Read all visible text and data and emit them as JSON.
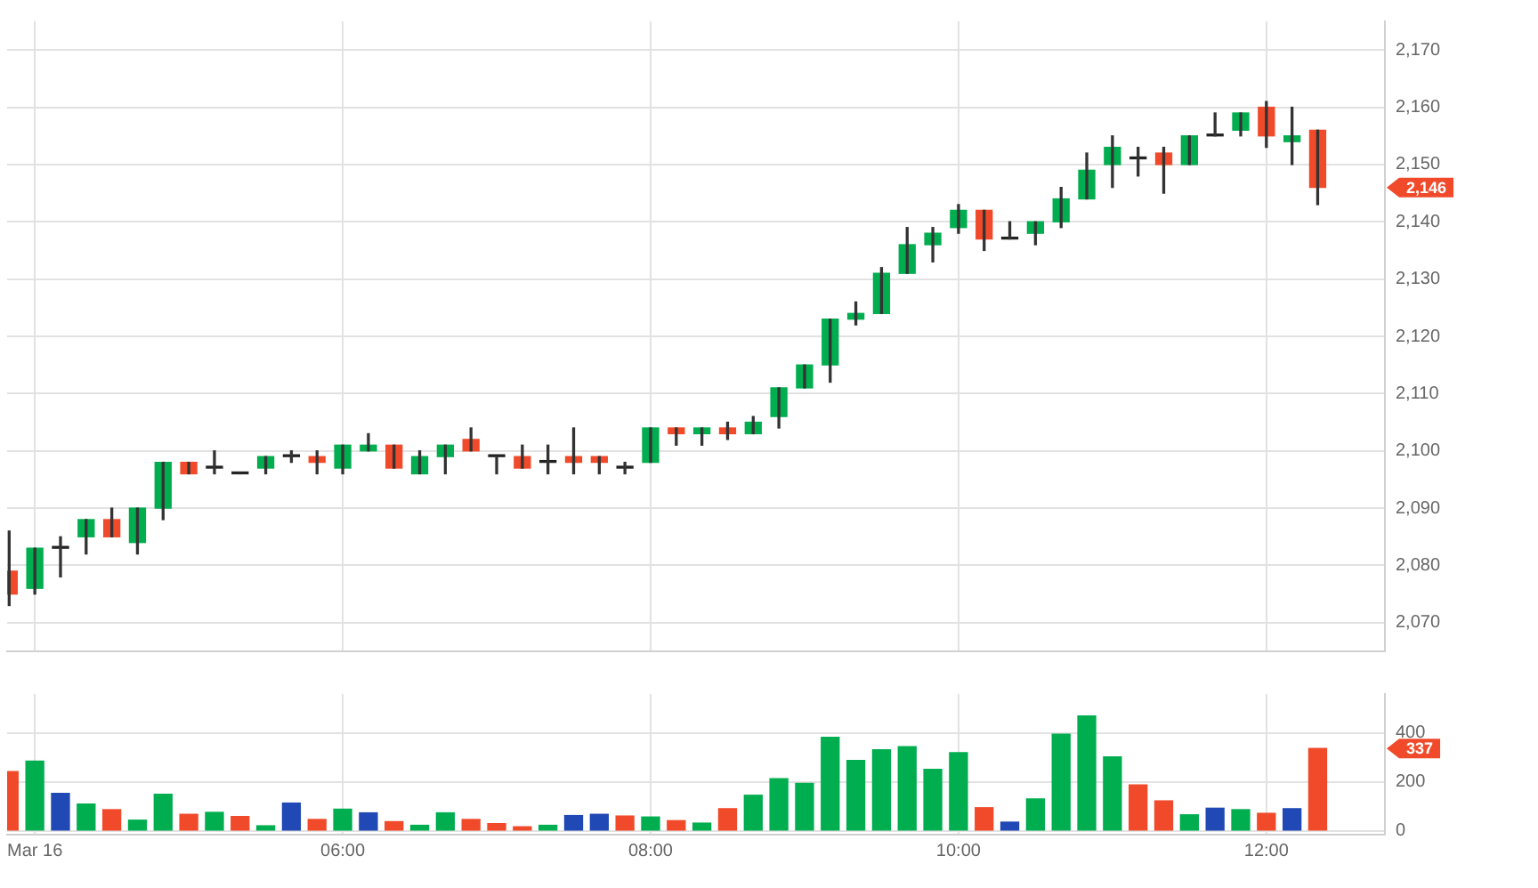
{
  "chart_data": [
    {
      "type": "candlestick",
      "tick_labels": "y",
      "grid": true,
      "x": [
        3.8333,
        4,
        4.1667,
        4.3333,
        4.5,
        4.6667,
        4.8333,
        5,
        5.1667,
        5.3333,
        5.5,
        5.6667,
        5.8333,
        6,
        6.1667,
        6.3333,
        6.5,
        6.6667,
        6.8333,
        7,
        7.1667,
        7.3333,
        7.5,
        7.6667,
        7.8333,
        8,
        8.1667,
        8.3333,
        8.5,
        8.6667,
        8.8333,
        9,
        9.1667,
        9.3333,
        9.5,
        9.6667,
        9.8333,
        10,
        10.1667,
        10.3333,
        10.5,
        10.6667,
        10.8333,
        11,
        11.1667,
        11.3333,
        11.5,
        11.6667,
        11.8333,
        12,
        12.1667,
        12.3333
      ],
      "ohlc": [
        [
          2079,
          2086,
          2073,
          2075
        ],
        [
          2076,
          2083,
          2075,
          2083
        ],
        [
          2083,
          2085,
          2078,
          2083
        ],
        [
          2085,
          2088,
          2082,
          2088
        ],
        [
          2088,
          2090,
          2085,
          2085
        ],
        [
          2084,
          2090,
          2082,
          2090
        ],
        [
          2090,
          2098,
          2088,
          2098
        ],
        [
          2098,
          2098,
          2096,
          2096
        ],
        [
          2097,
          2100,
          2096,
          2097
        ],
        [
          2096,
          2096,
          2096,
          2096
        ],
        [
          2097,
          2099,
          2096,
          2099
        ],
        [
          2099,
          2100,
          2098,
          2099
        ],
        [
          2099,
          2100,
          2096,
          2098
        ],
        [
          2097,
          2101,
          2096,
          2101
        ],
        [
          2100,
          2103,
          2100,
          2101
        ],
        [
          2101,
          2101,
          2097,
          2097
        ],
        [
          2096,
          2100,
          2096,
          2099
        ],
        [
          2099,
          2101,
          2096,
          2101
        ],
        [
          2102,
          2104,
          2100,
          2100
        ],
        [
          2099,
          2099,
          2096,
          2099
        ],
        [
          2099,
          2101,
          2097,
          2097
        ],
        [
          2098,
          2101,
          2096,
          2098
        ],
        [
          2099,
          2104,
          2096,
          2098
        ],
        [
          2099,
          2099,
          2096,
          2098
        ],
        [
          2097,
          2098,
          2096,
          2097
        ],
        [
          2098,
          2104,
          2098,
          2104
        ],
        [
          2104,
          2104,
          2101,
          2103
        ],
        [
          2103,
          2104,
          2101,
          2104
        ],
        [
          2104,
          2105,
          2102,
          2103
        ],
        [
          2103,
          2106,
          2103,
          2105
        ],
        [
          2106,
          2111,
          2104,
          2111
        ],
        [
          2111,
          2115,
          2111,
          2115
        ],
        [
          2115,
          2123,
          2112,
          2123
        ],
        [
          2123,
          2126,
          2122,
          2124
        ],
        [
          2124,
          2132,
          2124,
          2131
        ],
        [
          2131,
          2139,
          2131,
          2136
        ],
        [
          2136,
          2139,
          2133,
          2138
        ],
        [
          2139,
          2143,
          2138,
          2142
        ],
        [
          2142,
          2142,
          2135,
          2137
        ],
        [
          2137,
          2140,
          2137,
          2137
        ],
        [
          2138,
          2140,
          2136,
          2140
        ],
        [
          2140,
          2146,
          2139,
          2144
        ],
        [
          2144,
          2152,
          2144,
          2149
        ],
        [
          2150,
          2155,
          2146,
          2153
        ],
        [
          2151,
          2153,
          2148,
          2151
        ],
        [
          2152,
          2153,
          2145,
          2150
        ],
        [
          2150,
          2155,
          2150,
          2155
        ],
        [
          2155,
          2159,
          2155,
          2155
        ],
        [
          2156,
          2159,
          2155,
          2159
        ],
        [
          2160,
          2161,
          2153,
          2155
        ],
        [
          2154,
          2160,
          2150,
          2155
        ],
        [
          2156,
          2156,
          2143,
          2146
        ]
      ],
      "colors": [
        "#f04a2a",
        "#00ad4f",
        "#222222",
        "#00ad4f",
        "#f04a2a",
        "#00ad4f",
        "#00ad4f",
        "#f04a2a",
        "#222222",
        "#222222",
        "#00ad4f",
        "#222222",
        "#f04a2a",
        "#00ad4f",
        "#00ad4f",
        "#f04a2a",
        "#00ad4f",
        "#00ad4f",
        "#f04a2a",
        "#222222",
        "#f04a2a",
        "#222222",
        "#f04a2a",
        "#f04a2a",
        "#222222",
        "#00ad4f",
        "#f04a2a",
        "#00ad4f",
        "#f04a2a",
        "#00ad4f",
        "#00ad4f",
        "#00ad4f",
        "#00ad4f",
        "#00ad4f",
        "#00ad4f",
        "#00ad4f",
        "#00ad4f",
        "#00ad4f",
        "#f04a2a",
        "#222222",
        "#00ad4f",
        "#00ad4f",
        "#00ad4f",
        "#00ad4f",
        "#222222",
        "#f04a2a",
        "#00ad4f",
        "#222222",
        "#00ad4f",
        "#f04a2a",
        "#00ad4f",
        "#f04a2a"
      ],
      "xlim": [
        3.82,
        12.77
      ],
      "xticks": [
        {
          "value": 4,
          "label": null
        },
        {
          "value": 6,
          "label": null
        },
        {
          "value": 8,
          "label": null
        },
        {
          "value": 10,
          "label": null
        },
        {
          "value": 12,
          "label": null
        }
      ],
      "ylim": [
        2065,
        2175
      ],
      "yticks": [
        {
          "value": 2070,
          "label": "2,070"
        },
        {
          "value": 2080,
          "label": "2,080"
        },
        {
          "value": 2090,
          "label": "2,090"
        },
        {
          "value": 2100,
          "label": "2,100"
        },
        {
          "value": 2110,
          "label": "2,110"
        },
        {
          "value": 2120,
          "label": "2,120"
        },
        {
          "value": 2130,
          "label": "2,130"
        },
        {
          "value": 2140,
          "label": "2,140"
        },
        {
          "value": 2150,
          "label": "2,150"
        },
        {
          "value": 2160,
          "label": "2,160"
        },
        {
          "value": 2170,
          "label": "2,170"
        }
      ],
      "annotations": [
        "2,146"
      ]
    },
    {
      "type": "bar",
      "grid": true,
      "x": [
        3.8333,
        4,
        4.1667,
        4.3333,
        4.5,
        4.6667,
        4.8333,
        5,
        5.1667,
        5.3333,
        5.5,
        5.6667,
        5.8333,
        6,
        6.1667,
        6.3333,
        6.5,
        6.6667,
        6.8333,
        7,
        7.1667,
        7.3333,
        7.5,
        7.6667,
        7.8333,
        8,
        8.1667,
        8.3333,
        8.5,
        8.6667,
        8.8333,
        9,
        9.1667,
        9.3333,
        9.5,
        9.6667,
        9.8333,
        10,
        10.1667,
        10.3333,
        10.5,
        10.6667,
        10.8333,
        11,
        11.1667,
        11.3333,
        11.5,
        11.6667,
        11.8333,
        12,
        12.1667,
        12.3333
      ],
      "values": [
        243,
        286,
        154,
        110,
        87,
        44,
        150,
        68,
        76,
        59,
        21,
        114,
        47,
        89,
        74,
        38,
        23,
        74,
        47,
        30,
        17,
        23,
        63,
        68,
        61,
        57,
        42,
        32,
        91,
        146,
        214,
        195,
        383,
        288,
        332,
        345,
        252,
        320,
        95,
        36,
        131,
        396,
        470,
        303,
        188,
        123,
        66,
        93,
        87,
        72,
        91,
        337
      ],
      "colors": [
        "#f04a2a",
        "#00ad4f",
        "#2149b5",
        "#00ad4f",
        "#f04a2a",
        "#00ad4f",
        "#00ad4f",
        "#f04a2a",
        "#00ad4f",
        "#f04a2a",
        "#00ad4f",
        "#2149b5",
        "#f04a2a",
        "#00ad4f",
        "#2149b5",
        "#f04a2a",
        "#00ad4f",
        "#00ad4f",
        "#f04a2a",
        "#f04a2a",
        "#f04a2a",
        "#00ad4f",
        "#2149b5",
        "#2149b5",
        "#f04a2a",
        "#00ad4f",
        "#f04a2a",
        "#00ad4f",
        "#f04a2a",
        "#00ad4f",
        "#00ad4f",
        "#00ad4f",
        "#00ad4f",
        "#00ad4f",
        "#00ad4f",
        "#00ad4f",
        "#00ad4f",
        "#00ad4f",
        "#f04a2a",
        "#2149b5",
        "#00ad4f",
        "#00ad4f",
        "#00ad4f",
        "#00ad4f",
        "#f04a2a",
        "#f04a2a",
        "#00ad4f",
        "#2149b5",
        "#00ad4f",
        "#f04a2a",
        "#2149b5",
        "#f04a2a"
      ],
      "xlim": [
        3.82,
        12.77
      ],
      "xticks": [
        {
          "value": 4,
          "label": "Mar 16"
        },
        {
          "value": 6,
          "label": "06:00"
        },
        {
          "value": 8,
          "label": "08:00"
        },
        {
          "value": 10,
          "label": "10:00"
        },
        {
          "value": 12,
          "label": "12:00"
        }
      ],
      "ylim": [
        -15,
        560
      ],
      "yticks": [
        0,
        200,
        400
      ],
      "annotations": [
        "337"
      ]
    }
  ]
}
